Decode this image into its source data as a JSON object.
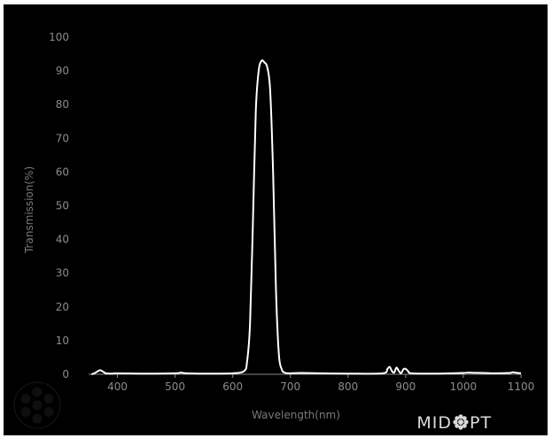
{
  "chart_data": {
    "type": "line",
    "xlabel": "Wavelength(nm)",
    "ylabel": "Transmission(%)",
    "xlim": [
      350,
      1100
    ],
    "ylim": [
      0,
      100
    ],
    "x_ticks": [
      400,
      500,
      600,
      700,
      800,
      900,
      1000,
      1100
    ],
    "y_ticks": [
      0,
      10,
      20,
      30,
      40,
      50,
      60,
      70,
      80,
      90,
      100
    ],
    "grid": false,
    "series": [
      {
        "color": "#ffffff",
        "x": [
          355,
          360,
          365,
          370,
          375,
          380,
          390,
          400,
          450,
          500,
          510,
          520,
          550,
          600,
          620,
          625,
          630,
          635,
          640,
          645,
          650,
          655,
          660,
          665,
          670,
          675,
          680,
          685,
          690,
          700,
          720,
          800,
          860,
          868,
          872,
          876,
          880,
          884,
          888,
          892,
          896,
          900,
          905,
          910,
          950,
          1000,
          1010,
          1050,
          1080,
          1085,
          1090,
          1100
        ],
        "y": [
          0,
          0.3,
          0.8,
          1.2,
          0.8,
          0.3,
          0.2,
          0.3,
          0.2,
          0.3,
          0.5,
          0.3,
          0.2,
          0.3,
          1,
          4,
          15,
          45,
          78,
          90,
          93,
          92.5,
          91,
          84,
          60,
          25,
          6,
          1.5,
          0.5,
          0.3,
          0.4,
          0.2,
          0.3,
          1.5,
          2.2,
          1.0,
          0.5,
          2.0,
          1.0,
          0.3,
          1.5,
          1.6,
          0.8,
          0.3,
          0.2,
          0.4,
          0.5,
          0.3,
          0.4,
          0.6,
          0.5,
          0.3
        ]
      }
    ]
  },
  "logo": {
    "text_left": "MID",
    "text_right": "PT",
    "icon": "midopt-flower-icon"
  },
  "watermark": {
    "icon": "lens-watermark-icon"
  },
  "colors": {
    "background": "#000000",
    "axis": "#8a8a8a",
    "line": "#ffffff"
  }
}
